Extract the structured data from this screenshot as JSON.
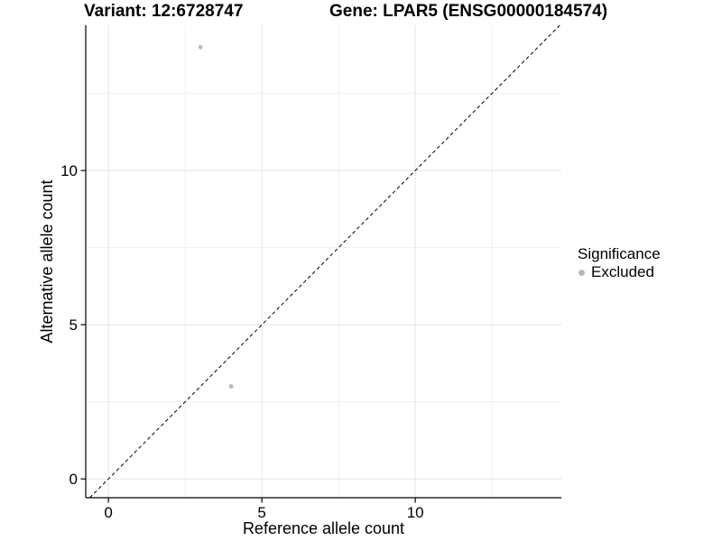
{
  "figure": {
    "background": "#ffffff"
  },
  "chart_data": {
    "type": "scatter",
    "title_variant": "Variant: 12:6728747",
    "title_gene": "Gene: LPAR5 (ENSG00000184574)",
    "xlabel": "Reference allele count",
    "ylabel": "Alternative allele count",
    "xlim": [
      -0.74,
      14.76
    ],
    "ylim": [
      -0.61,
      14.71
    ],
    "xticks": [
      0,
      5,
      10
    ],
    "yticks": [
      0,
      5,
      10
    ],
    "xminor": [
      2.5,
      7.5,
      12.5
    ],
    "yminor": [
      2.5,
      7.5,
      12.5
    ],
    "grid": true,
    "points": [
      {
        "x": 3,
        "y": 14,
        "significance": "Excluded"
      },
      {
        "x": 4,
        "y": 3,
        "significance": "Excluded"
      }
    ],
    "point_color": "#bdbdbd",
    "point_radius": 2.5,
    "identity_line": {
      "style": "dashed",
      "color": "#000000",
      "equation": "y = x"
    },
    "legend": {
      "title": "Significance",
      "position": "right",
      "entries": [
        {
          "label": "Excluded",
          "color": "#b8b8b8"
        }
      ]
    },
    "colors": {
      "axis_line": "#000000",
      "grid_major": "#e4e4e4",
      "grid_minor": "#f1f1f1",
      "text": "#000000"
    }
  }
}
